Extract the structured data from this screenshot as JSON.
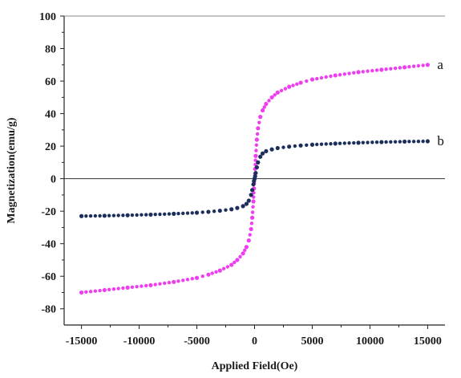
{
  "chart_data": {
    "type": "scatter",
    "title": "",
    "xlabel": "Applied Field(Oe)",
    "ylabel": "Magnetization(emu/g)",
    "xlim": [
      -16500,
      16500
    ],
    "ylim": [
      -90,
      100
    ],
    "x_ticks": [
      -15000,
      -10000,
      -5000,
      0,
      5000,
      10000,
      15000
    ],
    "x_tick_labels": [
      "-15000",
      "-10000",
      "-5000",
      "0",
      "5000",
      "10000",
      "15000"
    ],
    "y_ticks": [
      -80,
      -60,
      -40,
      -20,
      0,
      20,
      40,
      60,
      80,
      100
    ],
    "y_tick_labels": [
      "-80",
      "-60",
      "-40",
      "-20",
      "0",
      "20",
      "40",
      "60",
      "80",
      "100"
    ],
    "zero_line": true,
    "grid": false,
    "legend": "none",
    "series": [
      {
        "name": "a",
        "color": "#ee3ef0",
        "x": [
          -15000,
          -13000,
          -11000,
          -9000,
          -7000,
          -5000,
          -4000,
          -3000,
          -2000,
          -1500,
          -1000,
          -700,
          -500,
          -300,
          -200,
          -100,
          -50,
          0,
          50,
          100,
          200,
          300,
          500,
          700,
          1000,
          1500,
          2000,
          3000,
          4000,
          5000,
          7000,
          9000,
          11000,
          13000,
          15000
        ],
        "y": [
          -70,
          -68.5,
          -67,
          -65.5,
          -63.5,
          -61,
          -59,
          -56.5,
          -53,
          -50,
          -46,
          -42,
          -38,
          -31,
          -24,
          -14,
          -6,
          0,
          6,
          14,
          24,
          31,
          38,
          42,
          46,
          50,
          53,
          56.5,
          59,
          61,
          63.5,
          65.5,
          67,
          68.5,
          70
        ]
      },
      {
        "name": "b",
        "color": "#1c2f5c",
        "x": [
          -15000,
          -13000,
          -11000,
          -9000,
          -7000,
          -5000,
          -4000,
          -3000,
          -2000,
          -1500,
          -1000,
          -700,
          -500,
          -300,
          -200,
          -100,
          -50,
          0,
          50,
          100,
          200,
          300,
          500,
          700,
          1000,
          1500,
          2000,
          3000,
          4000,
          5000,
          7000,
          9000,
          11000,
          13000,
          15000
        ],
        "y": [
          -23,
          -22.8,
          -22.5,
          -22.1,
          -21.6,
          -20.9,
          -20.4,
          -19.7,
          -18.8,
          -18,
          -16.9,
          -15.5,
          -13.5,
          -10,
          -7,
          -3.5,
          -1.5,
          0,
          1.5,
          3.5,
          7,
          10,
          13.5,
          15.5,
          16.9,
          18,
          18.8,
          19.7,
          20.4,
          20.9,
          21.6,
          22.1,
          22.5,
          22.8,
          23
        ]
      }
    ],
    "annotations": [
      {
        "text": "a",
        "series": 0
      },
      {
        "text": "b",
        "series": 1
      }
    ]
  }
}
